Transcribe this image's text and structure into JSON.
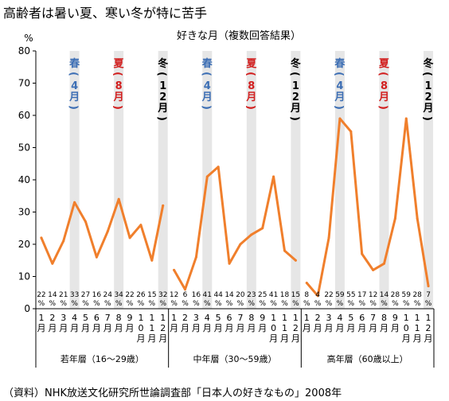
{
  "title": "高齢者は暑い夏、寒い冬が特に苦手",
  "source": "（資料）NHK放送文化研究所世論調査部「日本人の好きなもの」2008年",
  "chart_data": {
    "type": "line",
    "title": "好きな月（複数回答結果）",
    "ylabel": "%",
    "ylim": [
      0,
      80
    ],
    "yticks": [
      0,
      10,
      20,
      30,
      40,
      50,
      60,
      70,
      80
    ],
    "grid": false,
    "legend": "none",
    "line_color": "#F07F2C",
    "month_labels": [
      "1月",
      "2月",
      "3月",
      "4月",
      "5月",
      "6月",
      "7月",
      "8月",
      "9月",
      "10月",
      "11月",
      "12月"
    ],
    "value_suffix": "%",
    "season_labels": [
      {
        "season": "春",
        "month": "（4月）",
        "color": "#3C6EB4",
        "month_index": 3
      },
      {
        "season": "夏",
        "month": "（8月）",
        "color": "#D21E1E",
        "month_index": 7
      },
      {
        "season": "冬",
        "month": "（12月）",
        "color": "#000000",
        "month_index": 11
      }
    ],
    "series": [
      {
        "group_label": "若年層（16～29歳）",
        "values": [
          22,
          14,
          21,
          33,
          27,
          16,
          24,
          34,
          22,
          26,
          15,
          32
        ]
      },
      {
        "group_label": "中年層（30～59歳）",
        "values": [
          12,
          6,
          16,
          41,
          44,
          14,
          20,
          23,
          25,
          41,
          18,
          15
        ]
      },
      {
        "group_label": "高年層（60歳以上）",
        "values": [
          8,
          4,
          22,
          59,
          55,
          17,
          12,
          14,
          28,
          59,
          28,
          7
        ]
      }
    ]
  }
}
